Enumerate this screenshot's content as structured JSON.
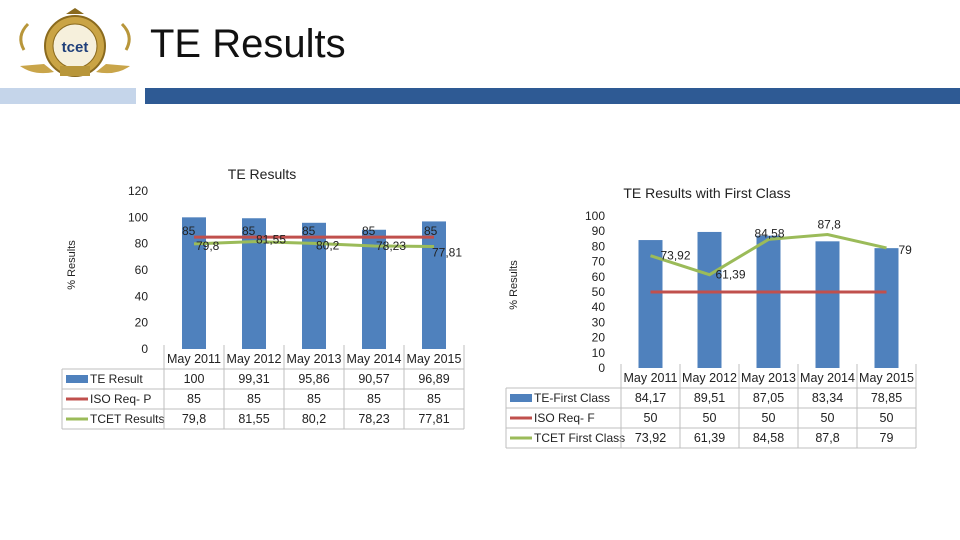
{
  "page": {
    "title": "TE Results"
  },
  "logo": {
    "text": "tcet"
  },
  "colors": {
    "bar": "#4f81bd",
    "iso": "#c0504d",
    "tcet": "#9bbb59",
    "header": "#2e5a94",
    "header_light": "#c5d5ea"
  },
  "chart_data": [
    {
      "type": "bar",
      "title": "TE Results",
      "ylabel": "% Results",
      "xlabel": "",
      "ylim": [
        0,
        120
      ],
      "yticks": [
        0,
        20,
        40,
        60,
        80,
        100,
        120
      ],
      "categories": [
        "May 2011",
        "May 2012",
        "May 2013",
        "May 2014",
        "May 2015"
      ],
      "series": [
        {
          "name": "TE Result",
          "kind": "bar",
          "values": [
            100,
            99.31,
            95.86,
            90.57,
            96.89
          ],
          "table": [
            "100",
            "99,31",
            "95,86",
            "90,57",
            "96,89"
          ]
        },
        {
          "name": "ISO Req- P",
          "kind": "line",
          "values": [
            85,
            85,
            85,
            85,
            85
          ],
          "table": [
            "85",
            "85",
            "85",
            "85",
            "85"
          ],
          "labels": [
            "85",
            "85",
            "85",
            "85",
            "85"
          ]
        },
        {
          "name": "TCET Results",
          "kind": "line",
          "values": [
            79.8,
            81.55,
            80.2,
            78.23,
            77.81
          ],
          "table": [
            "79,8",
            "81,55",
            "80,2",
            "78,23",
            "77,81"
          ],
          "labels": [
            "79,8",
            "81,55",
            "80,2",
            "78,23",
            "77,81"
          ]
        }
      ]
    },
    {
      "type": "bar",
      "title": "TE Results with First Class",
      "ylabel": "% Results",
      "xlabel": "",
      "ylim": [
        0,
        100
      ],
      "yticks": [
        0,
        10,
        20,
        30,
        40,
        50,
        60,
        70,
        80,
        90,
        100
      ],
      "categories": [
        "May 2011",
        "May 2012",
        "May 2013",
        "May 2014",
        "May 2015"
      ],
      "series": [
        {
          "name": "TE-First Class",
          "kind": "bar",
          "values": [
            84.17,
            89.51,
            87.05,
            83.34,
            78.85
          ],
          "table": [
            "84,17",
            "89,51",
            "87,05",
            "83,34",
            "78,85"
          ]
        },
        {
          "name": "ISO Req- F",
          "kind": "line",
          "values": [
            50,
            50,
            50,
            50,
            50
          ],
          "table": [
            "50",
            "50",
            "50",
            "50",
            "50"
          ]
        },
        {
          "name": "TCET First Class",
          "kind": "line",
          "values": [
            73.92,
            61.39,
            84.58,
            87.8,
            79
          ],
          "table": [
            "73,92",
            "61,39",
            "84,58",
            "87,8",
            "79"
          ],
          "labels": [
            "73,92",
            "61,39",
            "84,58",
            "87,8",
            "79"
          ]
        }
      ]
    }
  ]
}
